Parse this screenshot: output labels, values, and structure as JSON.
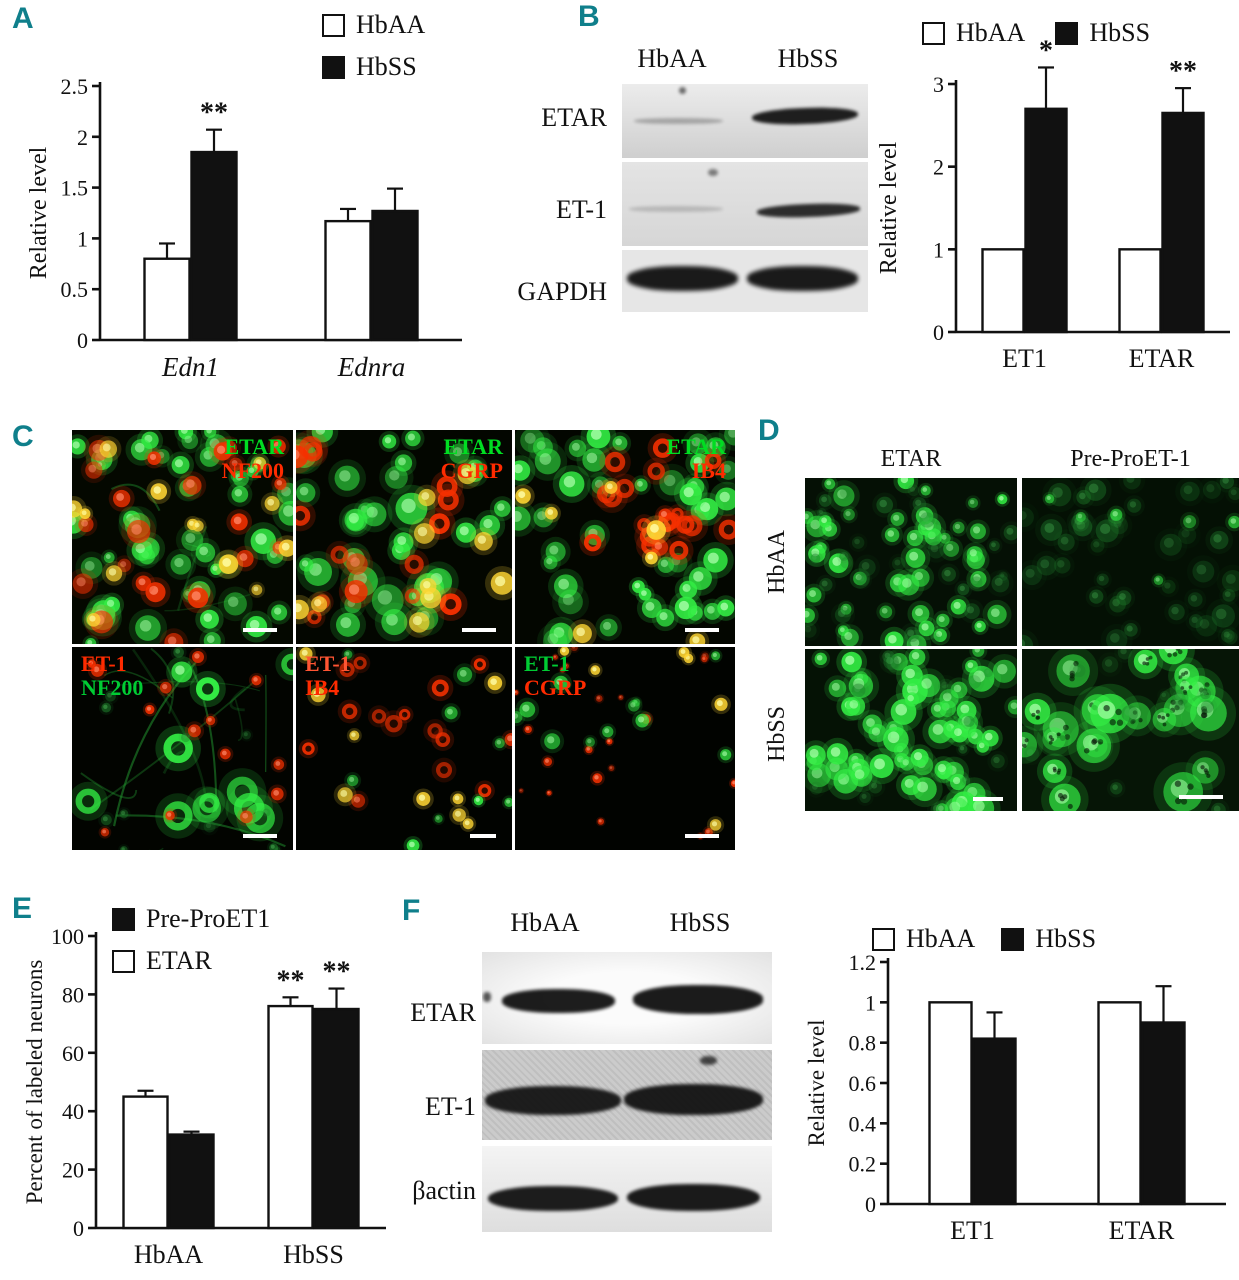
{
  "figure": {
    "accent_color": "#0f7f8b"
  },
  "chart_data": [
    {
      "id": "panel-A",
      "type": "bar",
      "ylabel": "Relative level",
      "ylim": [
        0,
        2.5
      ],
      "yticks": [
        0,
        0.5,
        1,
        1.5,
        2,
        2.5
      ],
      "ytick_labels": [
        "0",
        "0.5",
        "1",
        "1.5",
        "2",
        "2.5"
      ],
      "categories": [
        "Edn1",
        "Ednra"
      ],
      "italic_categories": true,
      "legend": [
        {
          "label": "HbAA",
          "fill": "#ffffff"
        },
        {
          "label": "HbSS",
          "fill": "#111111"
        }
      ],
      "series": [
        {
          "name": "HbAA",
          "fill": "#ffffff",
          "values": [
            0.8,
            1.17
          ],
          "errors": [
            0.15,
            0.12
          ],
          "sig": [
            "",
            ""
          ]
        },
        {
          "name": "HbSS",
          "fill": "#111111",
          "values": [
            1.85,
            1.27
          ],
          "errors": [
            0.22,
            0.22
          ],
          "sig": [
            "**",
            ""
          ]
        }
      ]
    },
    {
      "id": "panel-B-quantification",
      "type": "bar",
      "ylabel": "Relative level",
      "ylim": [
        0,
        3
      ],
      "yticks": [
        0,
        1,
        2,
        3
      ],
      "ytick_labels": [
        "0",
        "1",
        "2",
        "3"
      ],
      "categories": [
        "ET1",
        "ETAR"
      ],
      "italic_categories": false,
      "legend": [
        {
          "label": "HbAA",
          "fill": "#ffffff"
        },
        {
          "label": "HbSS",
          "fill": "#111111"
        }
      ],
      "series": [
        {
          "name": "HbAA",
          "fill": "#ffffff",
          "values": [
            1.0,
            1.0
          ],
          "errors": [
            0,
            0
          ],
          "sig": [
            "",
            ""
          ]
        },
        {
          "name": "HbSS",
          "fill": "#111111",
          "values": [
            2.7,
            2.65
          ],
          "errors": [
            0.5,
            0.3
          ],
          "sig": [
            "*",
            "**"
          ]
        }
      ]
    },
    {
      "id": "panel-E",
      "type": "bar",
      "ylabel": "Percent of labeled neurons",
      "ylim": [
        0,
        100
      ],
      "yticks": [
        0,
        20,
        40,
        60,
        80,
        100
      ],
      "ytick_labels": [
        "0",
        "20",
        "40",
        "60",
        "80",
        "100"
      ],
      "categories": [
        "HbAA",
        "HbSS"
      ],
      "italic_categories": false,
      "legend": [
        {
          "label": "Pre-ProET1",
          "fill": "#111111"
        },
        {
          "label": "ETAR",
          "fill": "#ffffff"
        }
      ],
      "series": [
        {
          "name": "ETAR",
          "fill": "#ffffff",
          "values": [
            45,
            76
          ],
          "errors": [
            2,
            3
          ],
          "sig": [
            "",
            "**"
          ]
        },
        {
          "name": "Pre-ProET1",
          "fill": "#111111",
          "values": [
            32,
            75
          ],
          "errors": [
            1,
            7
          ],
          "sig": [
            "",
            "**"
          ]
        }
      ]
    },
    {
      "id": "panel-F-quantification",
      "type": "bar",
      "ylabel": "Relative level",
      "ylim": [
        0,
        1.2
      ],
      "yticks": [
        0,
        0.2,
        0.4,
        0.6,
        0.8,
        1,
        1.2
      ],
      "ytick_labels": [
        "0",
        "0.2",
        "0.4",
        "0.6",
        "0.8",
        "1",
        "1.2"
      ],
      "categories": [
        "ET1",
        "ETAR"
      ],
      "italic_categories": false,
      "legend": [
        {
          "label": "HbAA",
          "fill": "#ffffff"
        },
        {
          "label": "HbSS",
          "fill": "#111111"
        }
      ],
      "series": [
        {
          "name": "HbAA",
          "fill": "#ffffff",
          "values": [
            1.0,
            1.0
          ],
          "errors": [
            0,
            0
          ],
          "sig": [
            "",
            ""
          ]
        },
        {
          "name": "HbSS",
          "fill": "#111111",
          "values": [
            0.82,
            0.9
          ],
          "errors": [
            0.13,
            0.18
          ],
          "sig": [
            "",
            ""
          ]
        }
      ]
    }
  ],
  "panels": {
    "A": {
      "letter": "A"
    },
    "B": {
      "letter": "B",
      "blot": {
        "lanes": [
          "HbAA",
          "HbSS"
        ],
        "rows": [
          "ETAR",
          "ET-1",
          "GAPDH"
        ]
      }
    },
    "C": {
      "letter": "C",
      "images": [
        {
          "name": "etar-nf200",
          "labels": [
            {
              "text": "ETAR",
              "color": "#00dd22"
            },
            {
              "text": "NF200",
              "color": "#ff2b00"
            }
          ]
        },
        {
          "name": "etar-cgrp",
          "labels": [
            {
              "text": "ETAR",
              "color": "#00dd22"
            },
            {
              "text": "CGRP",
              "color": "#ff2b00"
            }
          ]
        },
        {
          "name": "etar-ib4",
          "labels": [
            {
              "text": "ETAR",
              "color": "#00dd22"
            },
            {
              "text": "IB4",
              "color": "#ff2b00"
            }
          ]
        },
        {
          "name": "et1-nf200",
          "labels": [
            {
              "text": "ET-1",
              "color": "#ff2b00"
            },
            {
              "text": "NF200",
              "color": "#00cc33"
            }
          ]
        },
        {
          "name": "et1-ib4",
          "labels": [
            {
              "text": "ET-1",
              "color": "#ff5533"
            },
            {
              "text": "IB4",
              "color": "#ff2b00"
            }
          ]
        },
        {
          "name": "et1-cgrp",
          "labels": [
            {
              "text": "ET-1",
              "color": "#00cc33"
            },
            {
              "text": "CGRP",
              "color": "#ff2b00"
            }
          ]
        }
      ]
    },
    "D": {
      "letter": "D",
      "col_headers": [
        "ETAR",
        "Pre-ProET-1"
      ],
      "row_headers": [
        "HbAA",
        "HbSS"
      ]
    },
    "E": {
      "letter": "E"
    },
    "F": {
      "letter": "F",
      "blot": {
        "lanes": [
          "HbAA",
          "HbSS"
        ],
        "rows": [
          "ETAR",
          "ET-1",
          "βactin"
        ]
      }
    }
  }
}
